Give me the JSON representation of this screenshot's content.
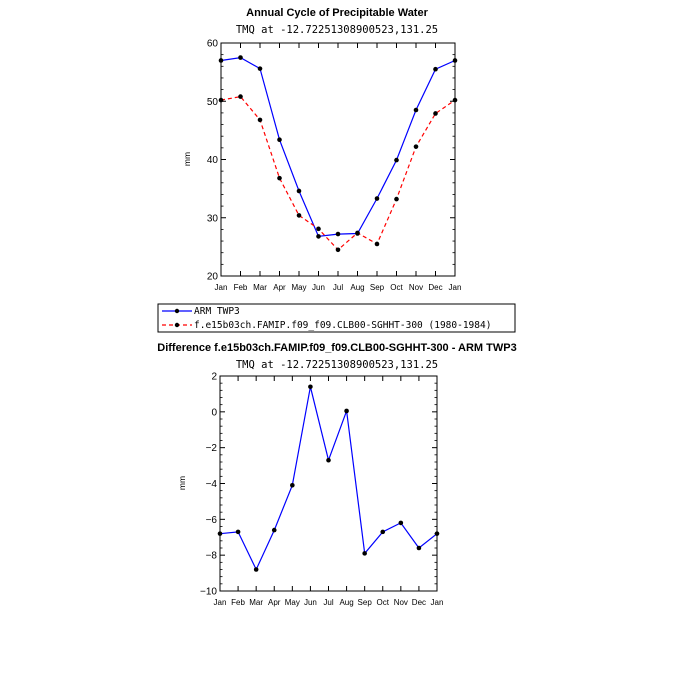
{
  "chart_data": [
    {
      "type": "line",
      "title": "Annual Cycle of Precipitable Water",
      "subtitle": "TMQ at -12.72251308900523,131.25",
      "ylabel": "mm",
      "xlabel": "",
      "ylim": [
        20,
        60
      ],
      "yticks": [
        "20",
        "30",
        "40",
        "50",
        "60"
      ],
      "categories": [
        "Jan",
        "Feb",
        "Mar",
        "Apr",
        "May",
        "Jun",
        "Jul",
        "Aug",
        "Sep",
        "Oct",
        "Nov",
        "Dec",
        "Jan"
      ],
      "series": [
        {
          "name": "ARM TWP3",
          "color": "#0000ff",
          "dash": "solid",
          "values": [
            57.0,
            57.5,
            55.6,
            43.4,
            34.6,
            26.8,
            27.2,
            27.3,
            33.3,
            39.9,
            48.5,
            55.5,
            57.0
          ]
        },
        {
          "name": "f.e15b03ch.FAMIP.f09_f09.CLB00-SGHHT-300 (1980-1984)",
          "color": "#ff0000",
          "dash": "dashed",
          "values": [
            50.2,
            50.8,
            46.8,
            36.8,
            30.4,
            28.1,
            24.5,
            27.4,
            25.5,
            33.2,
            42.2,
            47.9,
            50.2
          ]
        }
      ],
      "legend": "below"
    },
    {
      "type": "line",
      "title": "Difference f.e15b03ch.FAMIP.f09_f09.CLB00-SGHHT-300 - ARM TWP3",
      "subtitle": "TMQ at -12.72251308900523,131.25",
      "ylabel": "mm",
      "xlabel": "",
      "ylim": [
        -10,
        2
      ],
      "yticks": [
        "−10",
        "−8",
        "−6",
        "−4",
        "−2",
        "0",
        "2"
      ],
      "categories": [
        "Jan",
        "Feb",
        "Mar",
        "Apr",
        "May",
        "Jun",
        "Jul",
        "Aug",
        "Sep",
        "Oct",
        "Nov",
        "Dec",
        "Jan"
      ],
      "series": [
        {
          "name": "Difference",
          "color": "#0000ff",
          "dash": "solid",
          "values": [
            -6.8,
            -6.7,
            -8.8,
            -6.6,
            -4.1,
            1.4,
            -2.7,
            0.05,
            -7.9,
            -6.7,
            -6.2,
            -7.6,
            -6.8
          ]
        }
      ]
    }
  ]
}
